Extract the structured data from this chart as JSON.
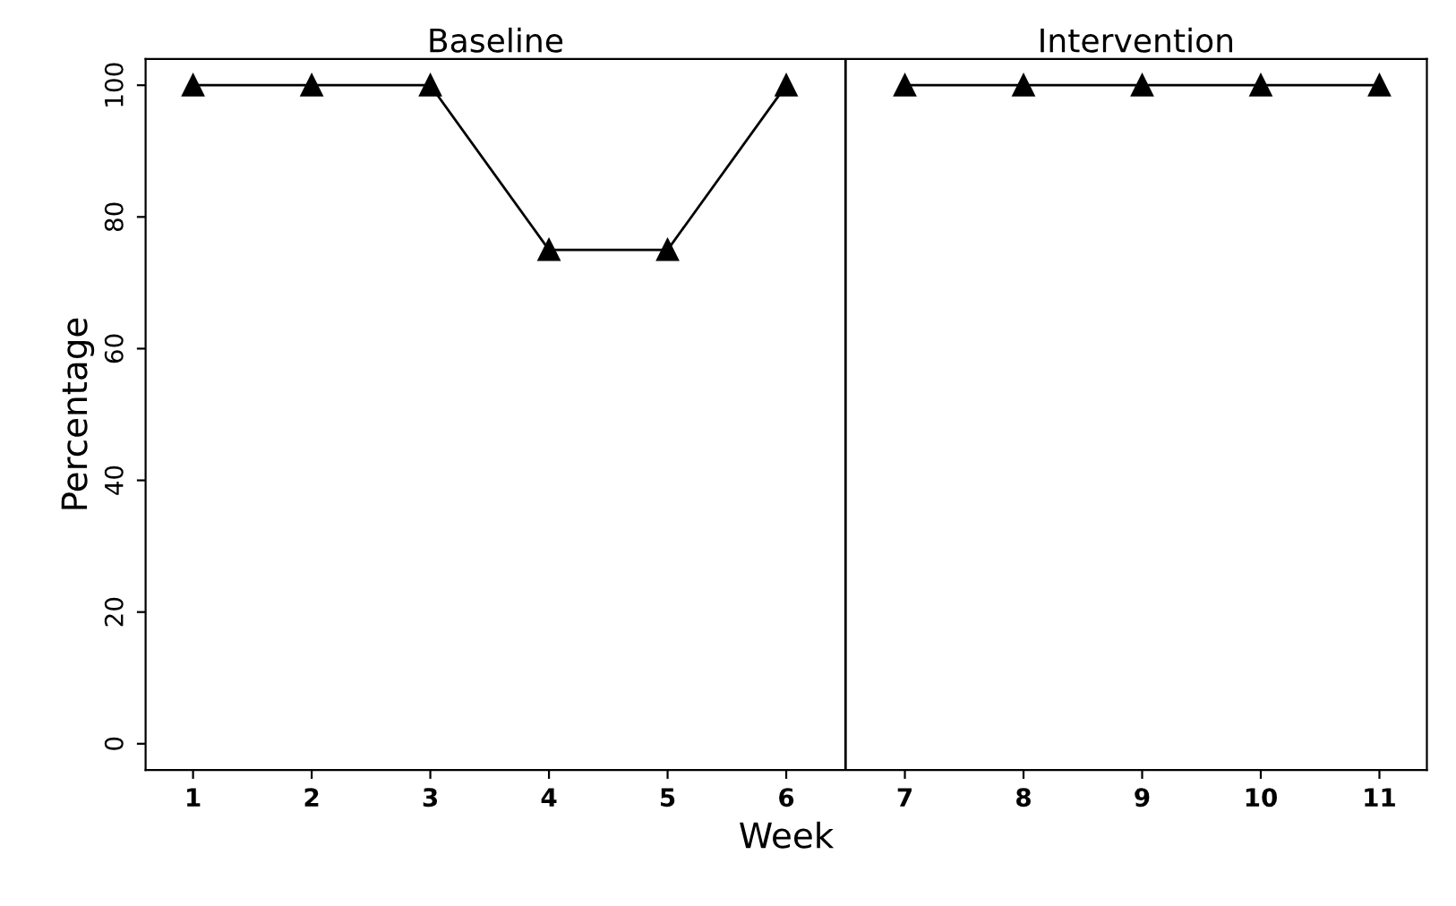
{
  "chart_data": {
    "type": "line",
    "xlabel": "Week",
    "ylabel": "Percentage",
    "series": [
      {
        "color": "#000000",
        "x": [
          1,
          2,
          3,
          4,
          5,
          6
        ],
        "values": [
          100,
          100,
          100,
          75,
          75,
          100
        ]
      },
      {
        "color": "#000000",
        "x": [
          7,
          8,
          9,
          10,
          11
        ],
        "values": [
          100,
          100,
          100,
          100,
          100
        ]
      }
    ],
    "xlim": [
      0.6,
      11.4
    ],
    "xticks": [
      1,
      2,
      3,
      4,
      5,
      6,
      7,
      8,
      9,
      10,
      11
    ],
    "ylim": [
      -4,
      104
    ],
    "yticks": [
      0,
      20,
      40,
      60,
      80,
      100
    ],
    "ref_lines": [
      {
        "axis": "x",
        "value": 6.5,
        "color": "#000000",
        "line_style": "solid"
      }
    ],
    "annotations": [
      "Baseline",
      "Intervention"
    ],
    "marker": "triangle",
    "line_style": "solid",
    "grid": false,
    "legend": false
  }
}
